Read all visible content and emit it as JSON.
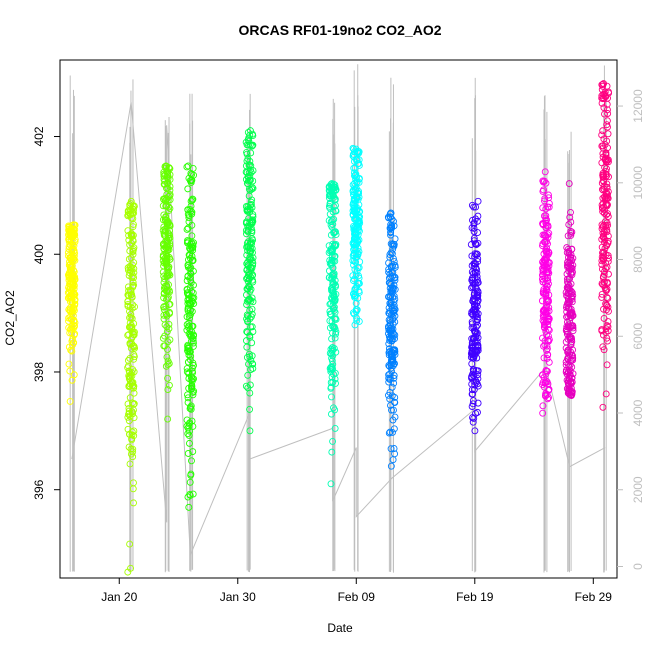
{
  "chart_data": {
    "type": "scatter",
    "title": "ORCAS RF01-19no2 CO2_AO2",
    "xlabel": "Date",
    "ylabel": "CO2_AO2",
    "xlim": [
      "2016-01-15",
      "2016-03-02"
    ],
    "ylim": [
      394.5,
      403.3
    ],
    "x_ticks": [
      {
        "date": "2016-01-20",
        "label": "Jan 20"
      },
      {
        "date": "2016-01-30",
        "label": "Jan 30"
      },
      {
        "date": "2016-02-09",
        "label": "Feb 09"
      },
      {
        "date": "2016-02-19",
        "label": "Feb 19"
      },
      {
        "date": "2016-02-29",
        "label": "Feb 29"
      }
    ],
    "y_ticks": [
      396,
      398,
      400,
      402
    ],
    "y_ticks_label": [
      "396",
      "398",
      "400",
      "402"
    ],
    "secondary_axis": {
      "description": "altitude trace",
      "ylim": [
        -300,
        13200
      ],
      "ticks": [
        0,
        2000,
        4000,
        6000,
        8000,
        10000,
        12000
      ],
      "tick_labels": [
        "0",
        "2000",
        "4000",
        "6000",
        "8000",
        "10000",
        "12000"
      ],
      "color": "#bfbfbf"
    },
    "grid": false,
    "series": [
      {
        "flight": 1,
        "date": "2016-01-16",
        "color": "#FFFF00",
        "y_range": [
          397.5,
          400.5
        ],
        "y_center": 399.6
      },
      {
        "flight": 2,
        "date": "2016-01-21",
        "color": "#A6FF00",
        "y_range": [
          394.6,
          400.9
        ],
        "y_center": 399.0
      },
      {
        "flight": 3,
        "date": "2016-01-24",
        "color": "#66FF00",
        "y_range": [
          397.2,
          401.5
        ],
        "y_center": 399.9
      },
      {
        "flight": 4,
        "date": "2016-01-26",
        "color": "#26FF00",
        "y_range": [
          395.7,
          401.5
        ],
        "y_center": 399.0
      },
      {
        "flight": 5,
        "date": "2016-01-31",
        "color": "#00FF4C",
        "y_range": [
          397.0,
          402.1
        ],
        "y_center": 400.2
      },
      {
        "flight": 6,
        "date": "2016-02-07",
        "color": "#00FFB3",
        "y_range": [
          396.1,
          401.2
        ],
        "y_center": 399.7
      },
      {
        "flight": 7,
        "date": "2016-02-09",
        "color": "#00FFFF",
        "y_range": [
          398.8,
          401.8
        ],
        "y_center": 400.6
      },
      {
        "flight": 8,
        "date": "2016-02-12",
        "color": "#0080FF",
        "y_range": [
          396.4,
          400.7
        ],
        "y_center": 398.8
      },
      {
        "flight": 9,
        "date": "2016-02-19",
        "color": "#4000FF",
        "y_range": [
          397.0,
          400.9
        ],
        "y_center": 399.0
      },
      {
        "flight": 10,
        "date": "2016-02-25",
        "color": "#FF00E6",
        "y_range": [
          397.3,
          401.4
        ],
        "y_center": 399.4
      },
      {
        "flight": 11,
        "date": "2016-02-27",
        "color": "#E600BF",
        "y_range": [
          397.6,
          401.2
        ],
        "y_center": 398.9
      },
      {
        "flight": 12,
        "date": "2016-03-01",
        "color": "#FF0080",
        "y_range": [
          397.4,
          402.9
        ],
        "y_center": 400.8
      }
    ],
    "altitude_trace": {
      "color": "#bfbfbf",
      "points": [
        [
          "2016-01-16",
          2800
        ],
        [
          "2016-01-21",
          12100
        ],
        [
          "2016-01-24",
          1150
        ],
        [
          "2016-01-24",
          11500
        ],
        [
          "2016-01-26",
          300
        ],
        [
          "2016-01-31",
          4000
        ],
        [
          "2016-01-31",
          2800
        ],
        [
          "2016-02-07",
          3600
        ],
        [
          "2016-02-07",
          1700
        ],
        [
          "2016-02-09",
          3100
        ],
        [
          "2016-02-09",
          1300
        ],
        [
          "2016-02-12",
          2300
        ],
        [
          "2016-02-12",
          2300
        ],
        [
          "2016-02-19",
          4100
        ],
        [
          "2016-02-19",
          3000
        ],
        [
          "2016-02-25",
          5200
        ],
        [
          "2016-02-27",
          2600
        ],
        [
          "2016-03-01",
          3100
        ]
      ]
    }
  }
}
